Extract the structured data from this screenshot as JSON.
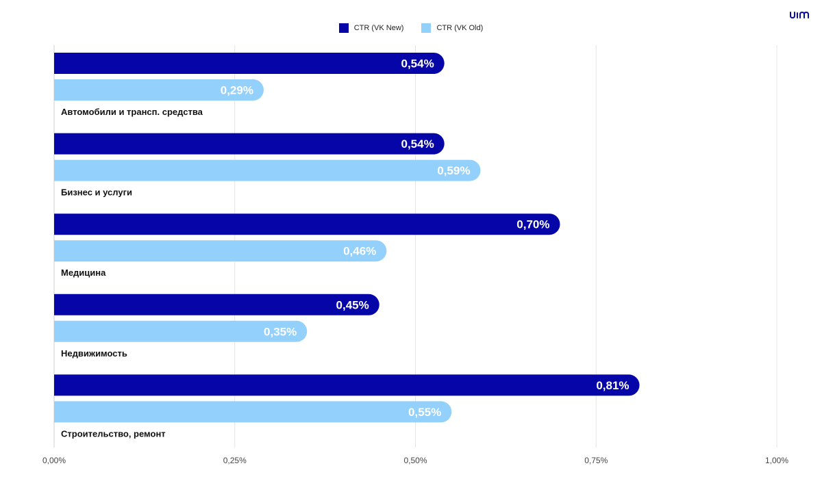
{
  "brand": {
    "logo_name": "uim-logo-icon",
    "color": "#0a0aa6"
  },
  "colors": {
    "new": "#0606A8",
    "old": "#93D0FB",
    "grid": "#e4e4e4",
    "axis": "#cfcfcf",
    "tick": "#444444"
  },
  "chart_data": {
    "type": "bar",
    "orientation": "horizontal",
    "categories": [
      "Автомобили и трансп. средства",
      "Бизнес и услуги",
      "Медицина",
      "Недвижимость",
      "Строительство, ремонт"
    ],
    "series": [
      {
        "name": "CTR (VK New)",
        "values": [
          0.54,
          0.54,
          0.7,
          0.45,
          0.81
        ],
        "labels": [
          "0,54%",
          "0,54%",
          "0,70%",
          "0,45%",
          "0,81%"
        ]
      },
      {
        "name": "CTR (VK Old)",
        "values": [
          0.29,
          0.59,
          0.46,
          0.35,
          0.55
        ],
        "labels": [
          "0,29%",
          "0,59%",
          "0,46%",
          "0,35%",
          "0,55%"
        ]
      }
    ],
    "xlim": [
      0,
      1.0
    ],
    "xticks": [
      0,
      0.25,
      0.5,
      0.75,
      1.0
    ],
    "xtick_labels": [
      "0,00%",
      "0,25%",
      "0,50%",
      "0,75%",
      "1,00%"
    ],
    "xlabel": "",
    "ylabel": "",
    "title": "",
    "grid": true,
    "legend_position": "top-center"
  }
}
